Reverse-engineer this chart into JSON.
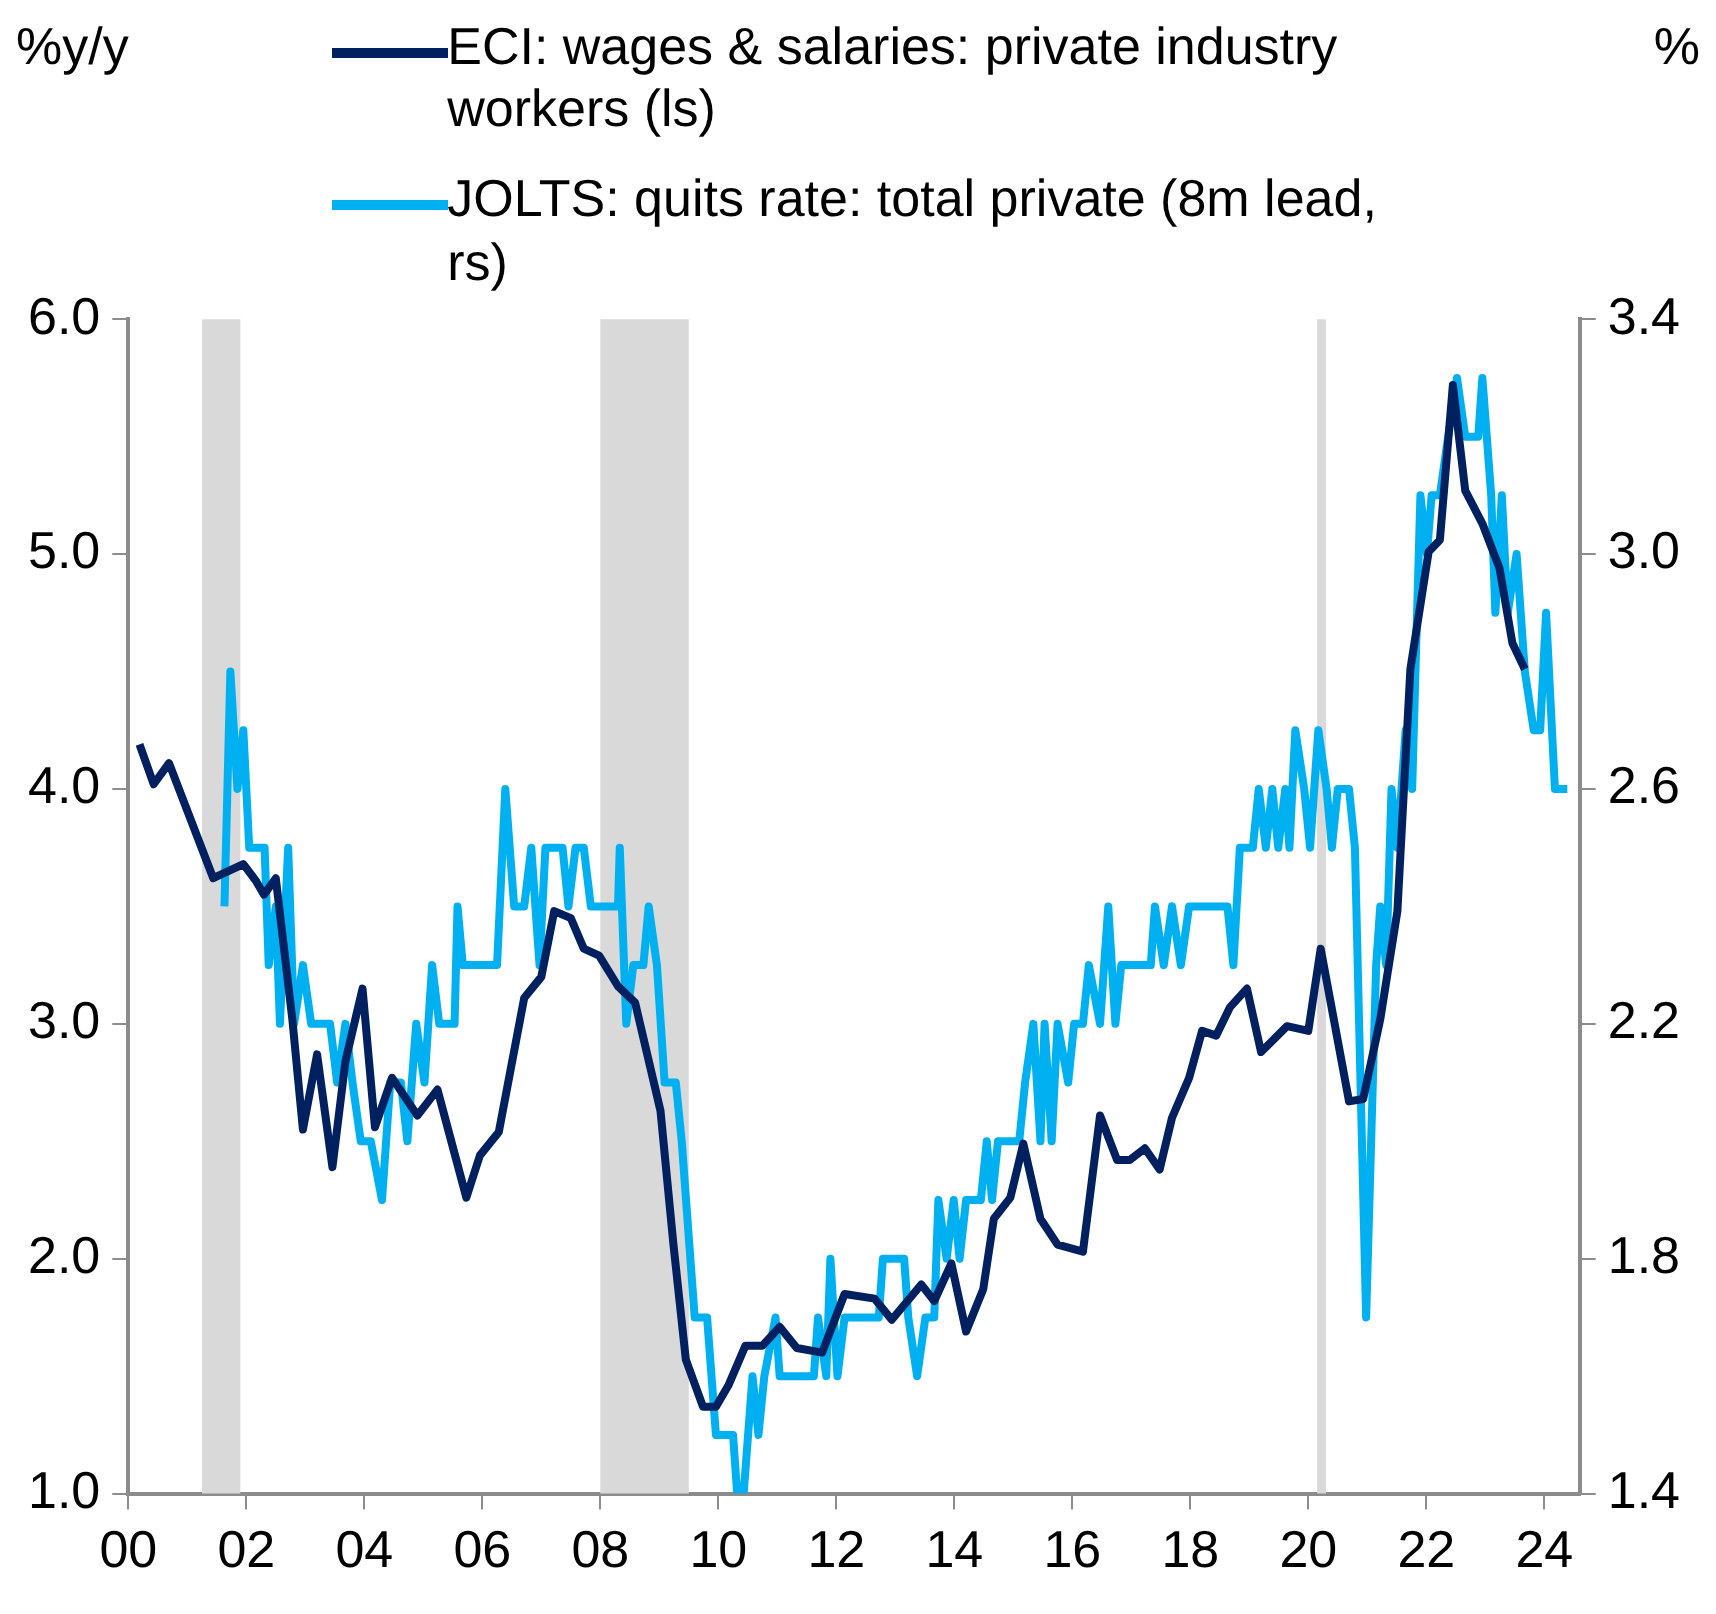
{
  "chart_data": {
    "type": "line",
    "ylabel": "%y/y",
    "y2label": "%",
    "legend": "top",
    "grid": false,
    "marker": "none",
    "line_style": "solid",
    "xlim": [
      2000,
      2024.6
    ],
    "xticks": [
      {
        "value": 2000,
        "label": "00"
      },
      {
        "value": 2002,
        "label": "02"
      },
      {
        "value": 2004,
        "label": "04"
      },
      {
        "value": 2006,
        "label": "06"
      },
      {
        "value": 2008,
        "label": "08"
      },
      {
        "value": 2010,
        "label": "10"
      },
      {
        "value": 2012,
        "label": "12"
      },
      {
        "value": 2014,
        "label": "14"
      },
      {
        "value": 2016,
        "label": "16"
      },
      {
        "value": 2018,
        "label": "18"
      },
      {
        "value": 2020,
        "label": "20"
      },
      {
        "value": 2022,
        "label": "22"
      },
      {
        "value": 2024,
        "label": "24"
      }
    ],
    "ylim": [
      1,
      6
    ],
    "yticks": [
      {
        "value": 1,
        "label": "1.0"
      },
      {
        "value": 2,
        "label": "2.0"
      },
      {
        "value": 3,
        "label": "3.0"
      },
      {
        "value": 4,
        "label": "4.0"
      },
      {
        "value": 5,
        "label": "5.0"
      },
      {
        "value": 6,
        "label": "6.0"
      }
    ],
    "y2lim": [
      1.4,
      3.4
    ],
    "y2ticks": [
      1.4,
      1.8,
      2.2,
      2.6,
      {
        "value": 3,
        "label": "3.0"
      },
      3.4
    ],
    "bands": [
      {
        "axis": "x",
        "from": 2001.25,
        "to": 2001.9,
        "color": "#d9d9d9"
      },
      {
        "axis": "x",
        "from": 2008.0,
        "to": 2009.5,
        "color": "#d9d9d9"
      },
      {
        "axis": "x",
        "from": 2020.15,
        "to": 2020.3,
        "color": "#d9d9d9"
      }
    ],
    "series": [
      {
        "name": "ECI: wages & salaries: private industry workers (ls)",
        "color": "#002060",
        "x": [
          2000.19,
          2000.43,
          2000.69,
          2001.44,
          2001.95,
          2002.16,
          2002.3,
          2002.5,
          2002.78,
          2002.96,
          2003.2,
          2003.46,
          2003.68,
          2003.97,
          2004.18,
          2004.47,
          2004.9,
          2005.24,
          2005.73,
          2005.96,
          2006.28,
          2006.71,
          2007.0,
          2007.22,
          2007.5,
          2007.72,
          2007.98,
          2008.3,
          2008.59,
          2009.02,
          2009.24,
          2009.45,
          2009.74,
          2009.96,
          2010.17,
          2010.46,
          2010.75,
          2011.04,
          2011.33,
          2011.76,
          2012.14,
          2012.65,
          2012.94,
          2013.44,
          2013.66,
          2013.95,
          2014.2,
          2014.49,
          2014.67,
          2014.95,
          2015.17,
          2015.46,
          2015.75,
          2016.18,
          2016.47,
          2016.76,
          2016.97,
          2017.23,
          2017.48,
          2017.69,
          2017.98,
          2018.2,
          2018.44,
          2018.67,
          2018.96,
          2019.2,
          2019.64,
          2020.0,
          2020.21,
          2020.69,
          2020.93,
          2021.22,
          2021.51,
          2021.73,
          2022.04,
          2022.23,
          2022.45,
          2022.66,
          2022.95,
          2023.24,
          2023.46,
          2023.67
        ],
        "values": [
          4.19,
          4.02,
          4.11,
          3.62,
          3.68,
          3.61,
          3.55,
          3.62,
          3.02,
          2.55,
          2.87,
          2.39,
          2.84,
          3.15,
          2.56,
          2.77,
          2.61,
          2.72,
          2.26,
          2.44,
          2.54,
          3.11,
          3.2,
          3.48,
          3.45,
          3.32,
          3.29,
          3.16,
          3.09,
          2.63,
          2.06,
          1.57,
          1.37,
          1.37,
          1.46,
          1.63,
          1.63,
          1.71,
          1.62,
          1.6,
          1.85,
          1.83,
          1.74,
          1.89,
          1.82,
          1.98,
          1.69,
          1.87,
          2.17,
          2.26,
          2.49,
          2.17,
          2.06,
          2.03,
          2.61,
          2.42,
          2.42,
          2.47,
          2.38,
          2.6,
          2.77,
          2.97,
          2.95,
          3.07,
          3.15,
          2.88,
          2.99,
          2.97,
          3.32,
          2.67,
          2.68,
          3.02,
          3.48,
          4.51,
          5.01,
          5.06,
          5.72,
          5.27,
          5.13,
          4.94,
          4.62,
          4.51
        ]
      },
      {
        "name": "JOLTS: quits rate: total private (8m lead, rs)",
        "color": "#00b0f0",
        "axis": "y2",
        "x": [
          2001.63,
          2001.73,
          2001.85,
          2001.95,
          2002.05,
          2002.31,
          2002.38,
          2002.5,
          2002.57,
          2002.71,
          2002.81,
          2002.96,
          2003.1,
          2003.42,
          2003.54,
          2003.68,
          2003.8,
          2003.94,
          2004.11,
          2004.3,
          2004.44,
          2004.62,
          2004.73,
          2004.88,
          2005.02,
          2005.15,
          2005.27,
          2005.53,
          2005.58,
          2005.67,
          2006.25,
          2006.39,
          2006.54,
          2006.71,
          2006.83,
          2006.97,
          2007.07,
          2007.36,
          2007.46,
          2007.58,
          2007.72,
          2007.84,
          2008.3,
          2008.33,
          2008.44,
          2008.56,
          2008.73,
          2008.82,
          2008.96,
          2009.09,
          2009.28,
          2009.38,
          2009.6,
          2009.81,
          2009.96,
          2010.25,
          2010.32,
          2010.43,
          2010.58,
          2010.68,
          2010.78,
          2010.97,
          2011.04,
          2011.62,
          2011.69,
          2011.83,
          2011.9,
          2012.02,
          2012.14,
          2012.72,
          2012.79,
          2013.15,
          2013.22,
          2013.37,
          2013.51,
          2013.66,
          2013.73,
          2013.87,
          2013.99,
          2014.09,
          2014.2,
          2014.45,
          2014.55,
          2014.64,
          2014.74,
          2015.1,
          2015.2,
          2015.34,
          2015.46,
          2015.53,
          2015.65,
          2015.75,
          2015.93,
          2016.03,
          2016.18,
          2016.28,
          2016.47,
          2016.61,
          2016.73,
          2016.83,
          2017.33,
          2017.4,
          2017.55,
          2017.69,
          2017.84,
          2017.98,
          2018.63,
          2018.73,
          2018.84,
          2019.06,
          2019.16,
          2019.28,
          2019.39,
          2019.49,
          2019.61,
          2019.68,
          2019.78,
          2019.93,
          2020.03,
          2020.17,
          2020.31,
          2020.4,
          2020.5,
          2020.69,
          2020.79,
          2020.98,
          2021.15,
          2021.22,
          2021.32,
          2021.41,
          2021.51,
          2021.65,
          2021.76,
          2021.9,
          2022.01,
          2022.09,
          2022.23,
          2022.37,
          2022.52,
          2022.66,
          2022.88,
          2022.95,
          2023.1,
          2023.17,
          2023.28,
          2023.38,
          2023.53,
          2023.67,
          2023.82,
          2023.93,
          2024.03,
          2024.18,
          2024.39
        ],
        "values": [
          2.4,
          2.8,
          2.6,
          2.7,
          2.5,
          2.5,
          2.3,
          2.4,
          2.2,
          2.5,
          2.2,
          2.3,
          2.2,
          2.2,
          2.1,
          2.2,
          2.1,
          2.0,
          2.0,
          1.9,
          2.1,
          2.1,
          2.0,
          2.2,
          2.1,
          2.3,
          2.2,
          2.2,
          2.4,
          2.3,
          2.3,
          2.6,
          2.4,
          2.4,
          2.5,
          2.3,
          2.5,
          2.5,
          2.4,
          2.5,
          2.5,
          2.4,
          2.4,
          2.5,
          2.2,
          2.3,
          2.3,
          2.4,
          2.3,
          2.1,
          2.1,
          2.0,
          1.7,
          1.7,
          1.5,
          1.5,
          1.4,
          1.4,
          1.6,
          1.5,
          1.6,
          1.7,
          1.6,
          1.6,
          1.7,
          1.6,
          1.8,
          1.6,
          1.7,
          1.7,
          1.8,
          1.8,
          1.7,
          1.6,
          1.7,
          1.7,
          1.9,
          1.8,
          1.9,
          1.8,
          1.9,
          1.9,
          2.0,
          1.9,
          2.0,
          2.0,
          2.1,
          2.2,
          2.0,
          2.2,
          2.0,
          2.2,
          2.1,
          2.2,
          2.2,
          2.3,
          2.2,
          2.4,
          2.2,
          2.3,
          2.3,
          2.4,
          2.3,
          2.4,
          2.3,
          2.4,
          2.4,
          2.3,
          2.5,
          2.5,
          2.6,
          2.5,
          2.6,
          2.5,
          2.6,
          2.5,
          2.7,
          2.6,
          2.5,
          2.7,
          2.6,
          2.5,
          2.6,
          2.6,
          2.5,
          1.7,
          2.3,
          2.4,
          2.3,
          2.6,
          2.5,
          2.7,
          2.6,
          3.1,
          3.0,
          3.1,
          3.1,
          3.2,
          3.3,
          3.2,
          3.2,
          3.3,
          3.1,
          2.9,
          3.1,
          2.9,
          3.0,
          2.8,
          2.7,
          2.7,
          2.9,
          2.6,
          2.6
        ]
      }
    ]
  }
}
